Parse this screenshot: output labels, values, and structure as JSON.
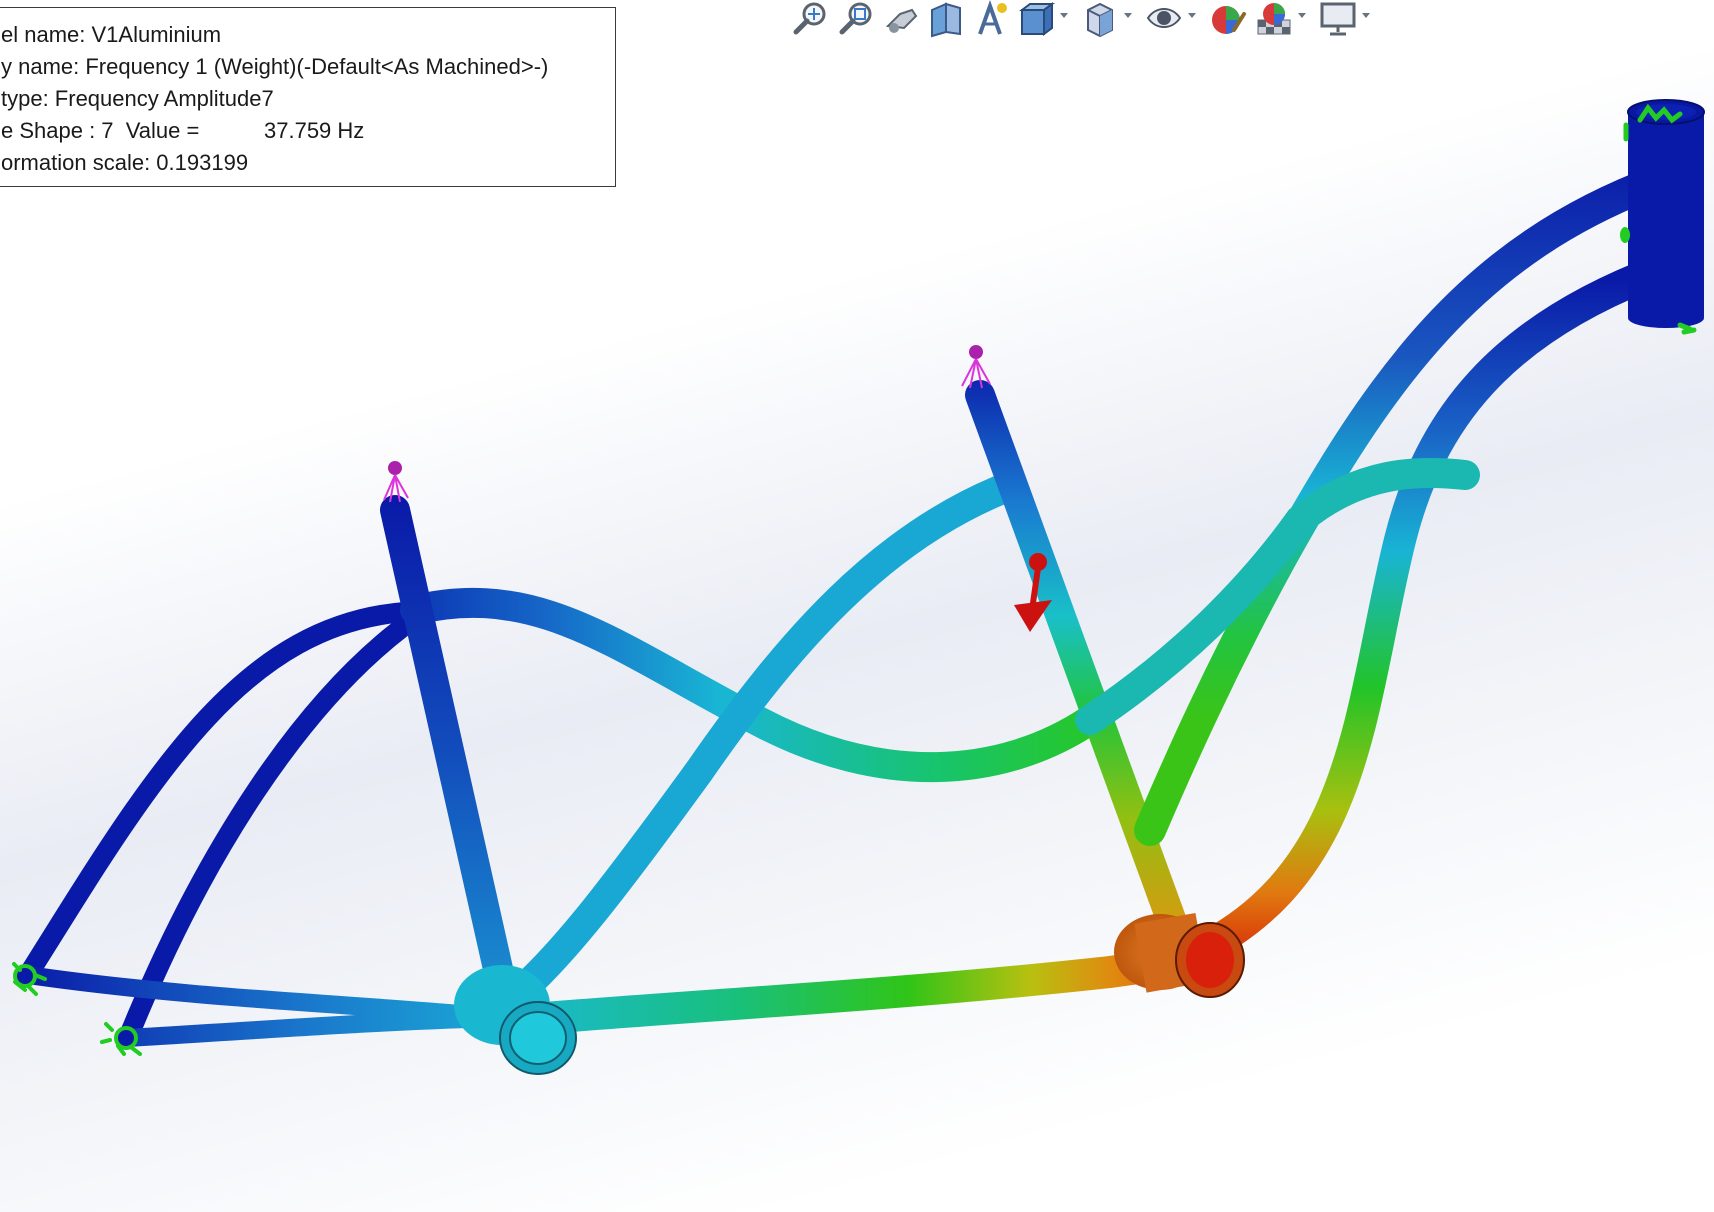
{
  "info": {
    "model_name": "el name: V1Aluminium",
    "study_name": "y name: Frequency 1 (Weight)(-Default<As Machined>-)",
    "plot_type": "type: Frequency Amplitude7",
    "mode_shape_label": "e Shape : 7  Value =",
    "mode_shape_value": "37.759 Hz",
    "deformation_scale": "ormation scale: 0.193199"
  },
  "toolbar": {
    "items": [
      "zoom-to-fit-icon",
      "zoom-to-area-icon",
      "previous-view-icon",
      "section-view-icon",
      "dynamic-annotation-icon",
      "view-orientation-icon",
      "display-style-icon",
      "hide-show-items-icon",
      "edit-appearance-icon",
      "apply-scene-icon",
      "view-settings-icon"
    ]
  },
  "colors": {
    "mode_min": "#0a1aa8",
    "mode_low": "#1a7fd4",
    "mode_mid_low": "#19c8d0",
    "mode_mid": "#19c018",
    "mode_mid_high": "#b0c010",
    "mode_high": "#e07010",
    "mode_max": "#d81808",
    "fixture": "#22cc22",
    "remote_mass": "#cc22cc",
    "force": "#cc1111"
  }
}
